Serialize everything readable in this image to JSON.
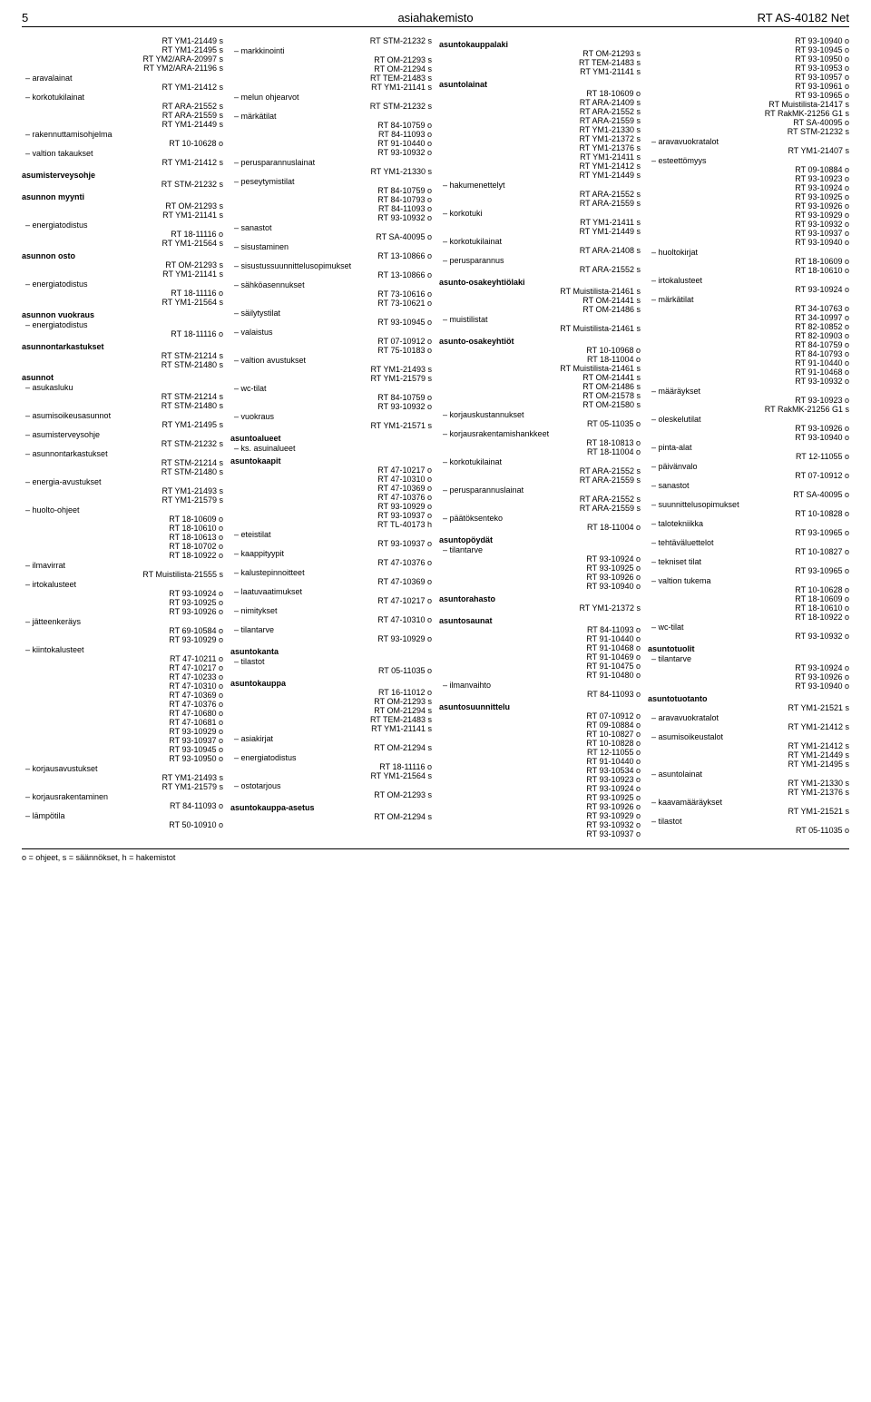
{
  "header": {
    "page_number": "5",
    "title": "asiahakemisto",
    "doc_code": "RT AS-40182 Net"
  },
  "footer": {
    "legend": "o = ohjeet, s = säännökset, h = hakemistot"
  },
  "columns": [
    [
      {
        "type": "ref",
        "refs": [
          "RT YM1-21449 s",
          "RT YM1-21495 s",
          "RT YM2/ARA-20997 s",
          "RT YM2/ARA-21196 s"
        ]
      },
      {
        "type": "sub",
        "label": "aravalainat",
        "refs": [
          "RT YM1-21412 s"
        ]
      },
      {
        "type": "sub",
        "label": "korkotukilainat",
        "refs": [
          "RT ARA-21552 s",
          "RT ARA-21559 s",
          "RT YM1-21449 s"
        ]
      },
      {
        "type": "sub",
        "label": "rakennuttamisohjelma",
        "refs": [
          "RT 10-10628 o"
        ]
      },
      {
        "type": "sub",
        "label": "valtion takaukset",
        "refs": [
          "RT YM1-21412 s"
        ]
      },
      {
        "type": "main",
        "label": "asumisterveysohje",
        "refs": [
          "RT STM-21232 s"
        ]
      },
      {
        "type": "main",
        "label": "asunnon myynti",
        "refs": [
          "RT OM-21293 s",
          "RT YM1-21141 s"
        ]
      },
      {
        "type": "sub",
        "label": "energiatodistus",
        "refs": [
          "RT 18-11116 o",
          "RT YM1-21564 s"
        ]
      },
      {
        "type": "main",
        "label": "asunnon osto",
        "refs": [
          "RT OM-21293 s",
          "RT YM1-21141 s"
        ]
      },
      {
        "type": "sub",
        "label": "energiatodistus",
        "refs": [
          "RT 18-11116 o",
          "RT YM1-21564 s"
        ]
      },
      {
        "type": "main",
        "label": "asunnon vuokraus",
        "refs": []
      },
      {
        "type": "sub",
        "label": "energiatodistus",
        "refs": [
          "RT 18-11116 o"
        ]
      },
      {
        "type": "main",
        "label": "asunnontarkastukset",
        "refs": [
          "RT STM-21214 s",
          "RT STM-21480 s"
        ]
      },
      {
        "type": "main",
        "label": "asunnot",
        "refs": []
      },
      {
        "type": "sub",
        "label": "asukasluku",
        "refs": [
          "RT STM-21214 s",
          "RT STM-21480 s"
        ]
      },
      {
        "type": "sub",
        "label": "asumisoikeusasunnot",
        "refs": [
          "RT YM1-21495 s"
        ]
      },
      {
        "type": "sub",
        "label": "asumisterveysohje",
        "refs": [
          "RT STM-21232 s"
        ]
      },
      {
        "type": "sub",
        "label": "asunnontarkastukset",
        "refs": [
          "RT STM-21214 s",
          "RT STM-21480 s"
        ]
      },
      {
        "type": "sub",
        "label": "energia-avustukset",
        "refs": [
          "RT YM1-21493 s",
          "RT YM1-21579 s"
        ]
      },
      {
        "type": "sub",
        "label": "huolto-ohjeet",
        "refs": [
          "RT 18-10609 o",
          "RT 18-10610 o",
          "RT 18-10613 o",
          "RT 18-10702 o",
          "RT 18-10922 o"
        ]
      },
      {
        "type": "sub",
        "label": "ilmavirrat",
        "refs": [
          "RT Muistilista-21555 s"
        ]
      },
      {
        "type": "sub",
        "label": "irtokalusteet",
        "refs": [
          "RT 93-10924 o",
          "RT 93-10925 o",
          "RT 93-10926 o"
        ]
      },
      {
        "type": "sub",
        "label": "jätteenkeräys",
        "refs": [
          "RT 69-10584 o",
          "RT 93-10929 o"
        ]
      },
      {
        "type": "sub",
        "label": "kiintokalusteet",
        "refs": [
          "RT 47-10211 o",
          "RT 47-10217 o",
          "RT 47-10233 o",
          "RT 47-10310 o",
          "RT 47-10369 o",
          "RT 47-10376 o",
          "RT 47-10680 o",
          "RT 47-10681 o",
          "RT 93-10929 o",
          "RT 93-10937 o",
          "RT 93-10945 o",
          "RT 93-10950 o"
        ]
      },
      {
        "type": "sub",
        "label": "korjausavustukset",
        "refs": [
          "RT YM1-21493 s",
          "RT YM1-21579 s"
        ]
      },
      {
        "type": "sub",
        "label": "korjausrakentaminen",
        "refs": [
          "RT 84-11093 o"
        ]
      },
      {
        "type": "sub",
        "label": "lämpötila",
        "refs": [
          "RT 50-10910 o"
        ]
      }
    ],
    [
      {
        "type": "ref",
        "refs": [
          "RT STM-21232 s"
        ]
      },
      {
        "type": "sub",
        "label": "markkinointi",
        "refs": [
          "RT OM-21293 s",
          "RT OM-21294 s",
          "RT TEM-21483 s",
          "RT YM1-21141 s"
        ]
      },
      {
        "type": "sub",
        "label": "melun ohjearvot",
        "refs": [
          "RT STM-21232 s"
        ]
      },
      {
        "type": "sub",
        "label": "märkätilat",
        "refs": [
          "RT 84-10759 o",
          "RT 84-11093 o",
          "RT 91-10440 o",
          "RT 93-10932 o"
        ]
      },
      {
        "type": "sub",
        "label": "perusparannuslainat",
        "refs": [
          "RT YM1-21330 s"
        ]
      },
      {
        "type": "sub",
        "label": "peseytymistilat",
        "refs": [
          "RT 84-10759 o",
          "RT 84-10793 o",
          "RT 84-11093 o",
          "RT 93-10932 o"
        ]
      },
      {
        "type": "sub",
        "label": "sanastot",
        "refs": [
          "RT SA-40095 o"
        ]
      },
      {
        "type": "sub",
        "label": "sisustaminen",
        "refs": [
          "RT 13-10866 o"
        ]
      },
      {
        "type": "sub",
        "label": "sisustussuunnittelusopimukset",
        "refs": [
          "RT 13-10866 o"
        ]
      },
      {
        "type": "sub",
        "label": "sähköasennukset",
        "refs": [
          "RT 73-10616 o",
          "RT 73-10621 o"
        ]
      },
      {
        "type": "sub",
        "label": "säilytystilat",
        "refs": [
          "RT 93-10945 o"
        ]
      },
      {
        "type": "sub",
        "label": "valaistus",
        "refs": [
          "RT 07-10912 o",
          "RT 75-10183 o"
        ]
      },
      {
        "type": "sub",
        "label": "valtion avustukset",
        "refs": [
          "RT YM1-21493 s",
          "RT YM1-21579 s"
        ]
      },
      {
        "type": "sub",
        "label": "wc-tilat",
        "refs": [
          "RT 84-10759 o",
          "RT 93-10932 o"
        ]
      },
      {
        "type": "sub",
        "label": "vuokraus",
        "refs": [
          "RT YM1-21571 s"
        ]
      },
      {
        "type": "main",
        "label": "asuntoalueet",
        "refs": []
      },
      {
        "type": "sub",
        "label": "ks. asuinalueet",
        "refs": []
      },
      {
        "type": "main",
        "label": "asuntokaapit",
        "refs": [
          "RT 47-10217 o",
          "RT 47-10310 o",
          "RT 47-10369 o",
          "RT 47-10376 o",
          "RT 93-10929 o",
          "RT 93-10937 o",
          "RT TL-40173 h"
        ]
      },
      {
        "type": "sub",
        "label": "eteistilat",
        "refs": [
          "RT 93-10937 o"
        ]
      },
      {
        "type": "sub",
        "label": "kaappityypit",
        "refs": [
          "RT 47-10376 o"
        ]
      },
      {
        "type": "sub",
        "label": "kalustepinnoitteet",
        "refs": [
          "RT 47-10369 o"
        ]
      },
      {
        "type": "sub",
        "label": "laatuvaatimukset",
        "refs": [
          "RT 47-10217 o"
        ]
      },
      {
        "type": "sub",
        "label": "nimitykset",
        "refs": [
          "RT 47-10310 o"
        ]
      },
      {
        "type": "sub",
        "label": "tilantarve",
        "refs": [
          "RT 93-10929 o"
        ]
      },
      {
        "type": "main",
        "label": "asuntokanta",
        "refs": []
      },
      {
        "type": "sub",
        "label": "tilastot",
        "refs": [
          "RT 05-11035 o"
        ]
      },
      {
        "type": "main",
        "label": "asuntokauppa",
        "refs": [
          "RT 16-11012 o",
          "RT OM-21293 s",
          "RT OM-21294 s",
          "RT TEM-21483 s",
          "RT YM1-21141 s"
        ]
      },
      {
        "type": "sub",
        "label": "asiakirjat",
        "refs": [
          "RT OM-21294 s"
        ]
      },
      {
        "type": "sub",
        "label": "energiatodistus",
        "refs": [
          "RT 18-11116 o",
          "RT YM1-21564 s"
        ]
      },
      {
        "type": "sub",
        "label": "ostotarjous",
        "refs": [
          "RT OM-21293 s"
        ]
      },
      {
        "type": "main",
        "label": "asuntokauppa-asetus",
        "refs": [
          "RT OM-21294 s"
        ]
      }
    ],
    [
      {
        "type": "main",
        "label": "asuntokauppalaki",
        "refs": [
          "RT OM-21293 s",
          "RT TEM-21483 s",
          "RT YM1-21141 s"
        ]
      },
      {
        "type": "main",
        "label": "asuntolainat",
        "refs": [
          "RT 18-10609 o",
          "RT ARA-21409 s",
          "RT ARA-21552 s",
          "RT ARA-21559 s",
          "RT YM1-21330 s",
          "RT YM1-21372 s",
          "RT YM1-21376 s",
          "RT YM1-21411 s",
          "RT YM1-21412 s",
          "RT YM1-21449 s"
        ]
      },
      {
        "type": "sub",
        "label": "hakumenettelyt",
        "refs": [
          "RT ARA-21552 s",
          "RT ARA-21559 s"
        ]
      },
      {
        "type": "sub",
        "label": "korkotuki",
        "refs": [
          "RT YM1-21411 s",
          "RT YM1-21449 s"
        ]
      },
      {
        "type": "sub",
        "label": "korkotukilainat",
        "refs": [
          "RT ARA-21408 s"
        ]
      },
      {
        "type": "sub",
        "label": "perusparannus",
        "refs": [
          "RT ARA-21552 s"
        ]
      },
      {
        "type": "main",
        "label": "asunto-osakeyhtiölaki",
        "refs": [
          "RT Muistilista-21461 s",
          "RT OM-21441 s",
          "RT OM-21486 s"
        ]
      },
      {
        "type": "sub",
        "label": "muistilistat",
        "refs": [
          "RT Muistilista-21461 s"
        ]
      },
      {
        "type": "main",
        "label": "asunto-osakeyhtiöt",
        "refs": [
          "RT 10-10968 o",
          "RT 18-11004 o",
          "RT Muistilista-21461 s",
          "RT OM-21441 s",
          "RT OM-21486 s",
          "RT OM-21578 s",
          "RT OM-21580 s"
        ]
      },
      {
        "type": "sub",
        "label": "korjauskustannukset",
        "refs": [
          "RT 05-11035 o"
        ]
      },
      {
        "type": "sub",
        "label": "korjausrakentamishankkeet",
        "refs": [
          "RT 18-10813 o",
          "RT 18-11004 o"
        ]
      },
      {
        "type": "sub",
        "label": "korkotukilainat",
        "refs": [
          "RT ARA-21552 s",
          "RT ARA-21559 s"
        ]
      },
      {
        "type": "sub",
        "label": "perusparannuslainat",
        "refs": [
          "RT ARA-21552 s",
          "RT ARA-21559 s"
        ]
      },
      {
        "type": "sub",
        "label": "päätöksenteko",
        "refs": [
          "RT 18-11004 o"
        ]
      },
      {
        "type": "main",
        "label": "asuntopöydät",
        "refs": []
      },
      {
        "type": "sub",
        "label": "tilantarve",
        "refs": [
          "RT 93-10924 o",
          "RT 93-10925 o",
          "RT 93-10926 o",
          "RT 93-10940 o"
        ]
      },
      {
        "type": "main",
        "label": "asuntorahasto",
        "refs": [
          "RT YM1-21372 s"
        ]
      },
      {
        "type": "main",
        "label": "asuntosaunat",
        "refs": [
          "RT 84-11093 o",
          "RT 91-10440 o",
          "RT 91-10468 o",
          "RT 91-10469 o",
          "RT 91-10475 o",
          "RT 91-10480 o"
        ]
      },
      {
        "type": "sub",
        "label": "ilmanvaihto",
        "refs": [
          "RT 84-11093 o"
        ]
      },
      {
        "type": "main",
        "label": "asuntosuunnittelu",
        "refs": [
          "RT 07-10912 o",
          "RT 09-10884 o",
          "RT 10-10827 o",
          "RT 10-10828 o",
          "RT 12-11055 o",
          "RT 91-10440 o",
          "RT 93-10534 o",
          "RT 93-10923 o",
          "RT 93-10924 o",
          "RT 93-10925 o",
          "RT 93-10926 o",
          "RT 93-10929 o",
          "RT 93-10932 o",
          "RT 93-10937 o"
        ]
      }
    ],
    [
      {
        "type": "ref",
        "refs": [
          "RT 93-10940 o",
          "RT 93-10945 o",
          "RT 93-10950 o",
          "RT 93-10953 o",
          "RT 93-10957 o",
          "RT 93-10961 o",
          "RT 93-10965 o",
          "RT Muistilista-21417 s",
          "RT RakMK-21256 G1 s",
          "RT SA-40095 o",
          "RT STM-21232 s"
        ]
      },
      {
        "type": "sub",
        "label": "aravavuokratalot",
        "refs": [
          "RT YM1-21407 s"
        ]
      },
      {
        "type": "sub",
        "label": "esteettömyys",
        "refs": [
          "RT 09-10884 o",
          "RT 93-10923 o",
          "RT 93-10924 o",
          "RT 93-10925 o",
          "RT 93-10926 o",
          "RT 93-10929 o",
          "RT 93-10932 o",
          "RT 93-10937 o",
          "RT 93-10940 o"
        ]
      },
      {
        "type": "sub",
        "label": "huoltokirjat",
        "refs": [
          "RT 18-10609 o",
          "RT 18-10610 o"
        ]
      },
      {
        "type": "sub",
        "label": "irtokalusteet",
        "refs": [
          "RT 93-10924 o"
        ]
      },
      {
        "type": "sub",
        "label": "märkätilat",
        "refs": [
          "RT 34-10763 o",
          "RT 34-10997 o",
          "RT 82-10852 o",
          "RT 82-10903 o",
          "RT 84-10759 o",
          "RT 84-10793 o",
          "RT 91-10440 o",
          "RT 91-10468 o",
          "RT 93-10932 o"
        ]
      },
      {
        "type": "sub",
        "label": "määräykset",
        "refs": [
          "RT 93-10923 o",
          "RT RakMK-21256 G1 s"
        ]
      },
      {
        "type": "sub",
        "label": "oleskelutilat",
        "refs": [
          "RT 93-10926 o",
          "RT 93-10940 o"
        ]
      },
      {
        "type": "sub",
        "label": "pinta-alat",
        "refs": [
          "RT 12-11055 o"
        ]
      },
      {
        "type": "sub",
        "label": "päivänvalo",
        "refs": [
          "RT 07-10912 o"
        ]
      },
      {
        "type": "sub",
        "label": "sanastot",
        "refs": [
          "RT SA-40095 o"
        ]
      },
      {
        "type": "sub",
        "label": "suunnittelusopimukset",
        "refs": [
          "RT 10-10828 o"
        ]
      },
      {
        "type": "sub",
        "label": "talotekniikka",
        "refs": [
          "RT 93-10965 o"
        ]
      },
      {
        "type": "sub",
        "label": "tehtäväluettelot",
        "refs": [
          "RT 10-10827 o"
        ]
      },
      {
        "type": "sub",
        "label": "tekniset tilat",
        "refs": [
          "RT 93-10965 o"
        ]
      },
      {
        "type": "sub",
        "label": "valtion tukema",
        "refs": [
          "RT 10-10628 o",
          "RT 18-10609 o",
          "RT 18-10610 o",
          "RT 18-10922 o"
        ]
      },
      {
        "type": "sub",
        "label": "wc-tilat",
        "refs": [
          "RT 93-10932 o"
        ]
      },
      {
        "type": "main",
        "label": "asuntotuolit",
        "refs": []
      },
      {
        "type": "sub",
        "label": "tilantarve",
        "refs": [
          "RT 93-10924 o",
          "RT 93-10926 o",
          "RT 93-10940 o"
        ]
      },
      {
        "type": "main",
        "label": "asuntotuotanto",
        "refs": [
          "RT YM1-21521 s"
        ]
      },
      {
        "type": "sub",
        "label": "aravavuokratalot",
        "refs": [
          "RT YM1-21412 s"
        ]
      },
      {
        "type": "sub",
        "label": "asumisoikeustalot",
        "refs": [
          "RT YM1-21412 s",
          "RT YM1-21449 s",
          "RT YM1-21495 s"
        ]
      },
      {
        "type": "sub",
        "label": "asuntolainat",
        "refs": [
          "RT YM1-21330 s",
          "RT YM1-21376 s"
        ]
      },
      {
        "type": "sub",
        "label": "kaavamääräykset",
        "refs": [
          "RT YM1-21521 s"
        ]
      },
      {
        "type": "sub",
        "label": "tilastot",
        "refs": [
          "RT 05-11035 o"
        ]
      }
    ]
  ]
}
